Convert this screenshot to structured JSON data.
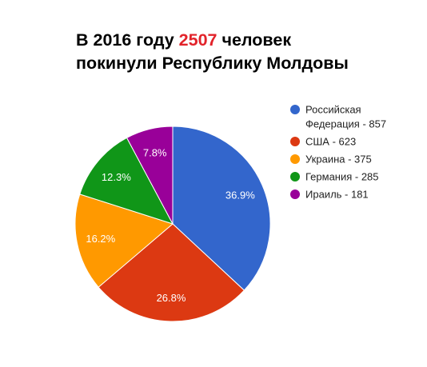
{
  "title": {
    "before": "В 2016 году ",
    "highlight": "2507",
    "line1_after": " человек",
    "line2": "покинули Республику Молдовы",
    "highlight_color": "#e2232a"
  },
  "chart_data": {
    "type": "pie",
    "total": 2507,
    "slices": [
      {
        "legend": [
          "Российская",
          "Федерация - 857"
        ],
        "value": 857,
        "label": "36.9%",
        "color": "#3366cc"
      },
      {
        "legend": [
          "США - 623"
        ],
        "value": 623,
        "label": "26.8%",
        "color": "#dc3912"
      },
      {
        "legend": [
          "Украина - 375"
        ],
        "value": 375,
        "label": "16.2%",
        "color": "#ff9900"
      },
      {
        "legend": [
          "Германия - 285"
        ],
        "value": 285,
        "label": "12.3%",
        "color": "#109618"
      },
      {
        "legend": [
          "Ираиль - 181"
        ],
        "value": 181,
        "label": "7.8%",
        "color": "#990099"
      }
    ],
    "legend_position": "right"
  }
}
